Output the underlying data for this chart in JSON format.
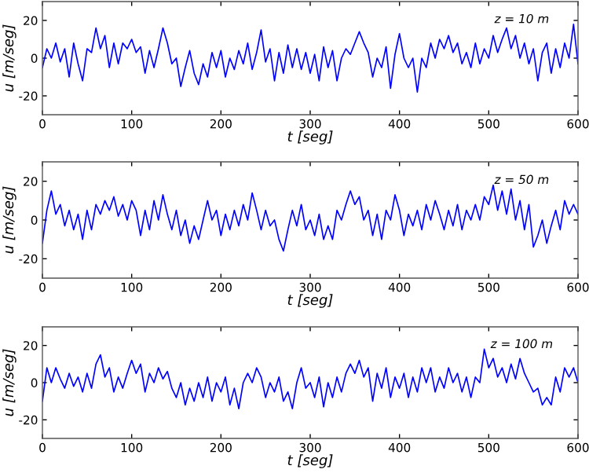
{
  "chart_data": [
    {
      "type": "line",
      "xlabel": "t [seg]",
      "ylabel": "u [m/seg]",
      "annotations": [
        "z = 10 m"
      ],
      "xlim": [
        0,
        600
      ],
      "ylim": [
        -30,
        30
      ],
      "xticks": [
        0,
        100,
        200,
        300,
        400,
        500,
        600
      ],
      "yticks": [
        -20,
        0,
        20
      ],
      "x": [
        0,
        5,
        10,
        15,
        20,
        25,
        30,
        35,
        40,
        45,
        50,
        55,
        60,
        65,
        70,
        75,
        80,
        85,
        90,
        95,
        100,
        105,
        110,
        115,
        120,
        125,
        130,
        135,
        140,
        145,
        150,
        155,
        160,
        165,
        170,
        175,
        180,
        185,
        190,
        195,
        200,
        205,
        210,
        215,
        220,
        225,
        230,
        235,
        240,
        245,
        250,
        255,
        260,
        265,
        270,
        275,
        280,
        285,
        290,
        295,
        300,
        305,
        310,
        315,
        320,
        325,
        330,
        335,
        340,
        345,
        350,
        355,
        360,
        365,
        370,
        375,
        380,
        385,
        390,
        395,
        400,
        405,
        410,
        415,
        420,
        425,
        430,
        435,
        440,
        445,
        450,
        455,
        460,
        465,
        470,
        475,
        480,
        485,
        490,
        495,
        500,
        505,
        510,
        515,
        520,
        525,
        530,
        535,
        540,
        545,
        550,
        555,
        560,
        565,
        570,
        575,
        580,
        585,
        590,
        595,
        600
      ],
      "series": [
        {
          "color": "#0000ff",
          "values": [
            -5,
            5,
            0,
            8,
            -2,
            5,
            -10,
            8,
            -3,
            -12,
            5,
            3,
            16,
            5,
            12,
            -5,
            8,
            -3,
            8,
            5,
            10,
            3,
            6,
            -8,
            4,
            -5,
            5,
            16,
            8,
            -3,
            0,
            -15,
            -5,
            4,
            -8,
            -14,
            -3,
            -10,
            3,
            -5,
            4,
            -10,
            0,
            -6,
            4,
            -3,
            8,
            -6,
            3,
            15,
            -2,
            5,
            -12,
            3,
            -8,
            7,
            -5,
            5,
            -6,
            3,
            -8,
            2,
            -12,
            6,
            -5,
            4,
            -12,
            0,
            5,
            2,
            8,
            14,
            8,
            3,
            -10,
            0,
            -5,
            6,
            -16,
            2,
            13,
            0,
            -5,
            0,
            -18,
            0,
            -5,
            8,
            0,
            10,
            5,
            12,
            3,
            8,
            -3,
            3,
            -5,
            8,
            -3,
            5,
            0,
            12,
            3,
            10,
            16,
            5,
            12,
            0,
            8,
            -3,
            5,
            -12,
            3,
            8,
            -8,
            5,
            -5,
            8,
            0,
            18,
            -3
          ]
        }
      ]
    },
    {
      "type": "line",
      "xlabel": "t [seg]",
      "ylabel": "u [m/seg]",
      "annotations": [
        "z = 50 m"
      ],
      "xlim": [
        0,
        600
      ],
      "ylim": [
        -30,
        30
      ],
      "xticks": [
        0,
        100,
        200,
        300,
        400,
        500,
        600
      ],
      "yticks": [
        -20,
        0,
        20
      ],
      "x": [
        0,
        5,
        10,
        15,
        20,
        25,
        30,
        35,
        40,
        45,
        50,
        55,
        60,
        65,
        70,
        75,
        80,
        85,
        90,
        95,
        100,
        105,
        110,
        115,
        120,
        125,
        130,
        135,
        140,
        145,
        150,
        155,
        160,
        165,
        170,
        175,
        180,
        185,
        190,
        195,
        200,
        205,
        210,
        215,
        220,
        225,
        230,
        235,
        240,
        245,
        250,
        255,
        260,
        265,
        270,
        275,
        280,
        285,
        290,
        295,
        300,
        305,
        310,
        315,
        320,
        325,
        330,
        335,
        340,
        345,
        350,
        355,
        360,
        365,
        370,
        375,
        380,
        385,
        390,
        395,
        400,
        405,
        410,
        415,
        420,
        425,
        430,
        435,
        440,
        445,
        450,
        455,
        460,
        465,
        470,
        475,
        480,
        485,
        490,
        495,
        500,
        505,
        510,
        515,
        520,
        525,
        530,
        535,
        540,
        545,
        550,
        555,
        560,
        565,
        570,
        575,
        580,
        585,
        590,
        595,
        600
      ],
      "series": [
        {
          "color": "#0000ff",
          "values": [
            -12,
            5,
            15,
            3,
            8,
            -3,
            5,
            -5,
            3,
            -10,
            5,
            -5,
            8,
            3,
            10,
            5,
            12,
            2,
            8,
            0,
            10,
            5,
            -8,
            5,
            -5,
            10,
            0,
            13,
            3,
            -5,
            5,
            -8,
            0,
            -12,
            -3,
            -10,
            0,
            10,
            0,
            5,
            -8,
            3,
            -5,
            5,
            -3,
            8,
            0,
            14,
            5,
            -5,
            5,
            -3,
            0,
            -10,
            -16,
            -5,
            5,
            -3,
            8,
            -5,
            0,
            -8,
            3,
            -10,
            -3,
            -10,
            5,
            0,
            8,
            15,
            8,
            12,
            0,
            5,
            -8,
            3,
            -10,
            5,
            0,
            13,
            5,
            -8,
            3,
            -3,
            5,
            -5,
            8,
            0,
            10,
            3,
            -5,
            5,
            -3,
            8,
            -5,
            5,
            0,
            8,
            0,
            12,
            8,
            18,
            5,
            15,
            3,
            16,
            0,
            10,
            -5,
            8,
            -14,
            -8,
            0,
            -12,
            -3,
            5,
            -5,
            10,
            3,
            8,
            3
          ]
        }
      ]
    },
    {
      "type": "line",
      "xlabel": "t [seg]",
      "ylabel": "u [m/seg]",
      "annotations": [
        "z = 100 m"
      ],
      "xlim": [
        0,
        600
      ],
      "ylim": [
        -30,
        30
      ],
      "xticks": [
        0,
        100,
        200,
        300,
        400,
        500,
        600
      ],
      "yticks": [
        -20,
        0,
        20
      ],
      "x": [
        0,
        5,
        10,
        15,
        20,
        25,
        30,
        35,
        40,
        45,
        50,
        55,
        60,
        65,
        70,
        75,
        80,
        85,
        90,
        95,
        100,
        105,
        110,
        115,
        120,
        125,
        130,
        135,
        140,
        145,
        150,
        155,
        160,
        165,
        170,
        175,
        180,
        185,
        190,
        195,
        200,
        205,
        210,
        215,
        220,
        225,
        230,
        235,
        240,
        245,
        250,
        255,
        260,
        265,
        270,
        275,
        280,
        285,
        290,
        295,
        300,
        305,
        310,
        315,
        320,
        325,
        330,
        335,
        340,
        345,
        350,
        355,
        360,
        365,
        370,
        375,
        380,
        385,
        390,
        395,
        400,
        405,
        410,
        415,
        420,
        425,
        430,
        435,
        440,
        445,
        450,
        455,
        460,
        465,
        470,
        475,
        480,
        485,
        490,
        495,
        500,
        505,
        510,
        515,
        520,
        525,
        530,
        535,
        540,
        545,
        550,
        555,
        560,
        565,
        570,
        575,
        580,
        585,
        590,
        595,
        600
      ],
      "series": [
        {
          "color": "#0000ff",
          "values": [
            -10,
            8,
            0,
            8,
            2,
            -3,
            5,
            -2,
            3,
            -5,
            5,
            -3,
            10,
            15,
            3,
            8,
            -5,
            3,
            -3,
            5,
            12,
            5,
            10,
            -5,
            5,
            0,
            8,
            2,
            6,
            -3,
            -8,
            0,
            -12,
            -3,
            -10,
            0,
            -8,
            3,
            -10,
            0,
            -5,
            3,
            -12,
            -3,
            -14,
            0,
            5,
            0,
            8,
            3,
            -8,
            0,
            -5,
            3,
            -10,
            -5,
            -14,
            0,
            8,
            -3,
            0,
            -8,
            3,
            -13,
            0,
            -8,
            3,
            -5,
            5,
            10,
            5,
            12,
            3,
            8,
            -10,
            5,
            -3,
            8,
            -8,
            3,
            -3,
            5,
            -8,
            3,
            -5,
            8,
            0,
            8,
            -5,
            3,
            -3,
            8,
            0,
            5,
            -5,
            3,
            -8,
            3,
            0,
            18,
            8,
            13,
            3,
            8,
            0,
            10,
            2,
            13,
            5,
            0,
            -5,
            -3,
            -12,
            -8,
            -12,
            3,
            -5,
            8,
            3,
            8,
            0
          ]
        }
      ]
    }
  ]
}
